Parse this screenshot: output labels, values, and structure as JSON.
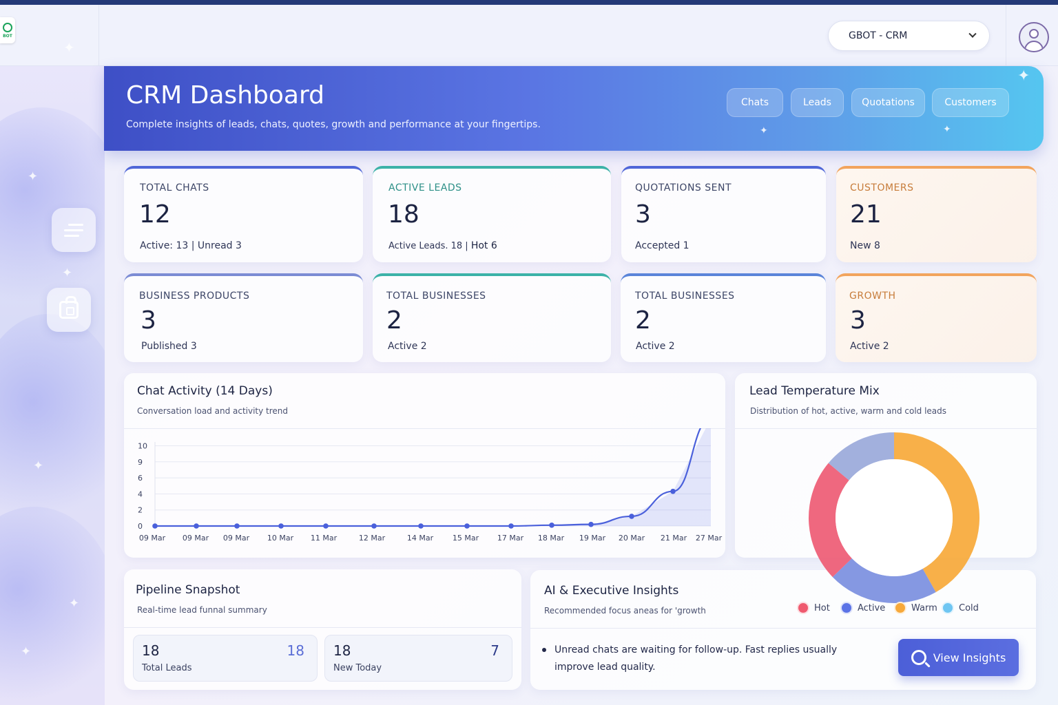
{
  "topbar": {
    "logo_text": "BOT",
    "workspace_select": "GBOT - CRM"
  },
  "header": {
    "title": "CRM Dashboard",
    "subtitle": "Complete insights of leads, chats, quotes, growth and performance at your fingertips.",
    "tabs": [
      {
        "label": "Chats"
      },
      {
        "label": "Leads"
      },
      {
        "label": "Quotations"
      },
      {
        "label": "Customers"
      }
    ]
  },
  "stats": [
    {
      "label": "TOTAL CHATS",
      "value": "12",
      "sub_plain": "Active: 13 | Unread 3",
      "sub_strong": ""
    },
    {
      "label": "ACTIVE LEADS",
      "value": "18",
      "sub_plain": "Active Leads. 18 |",
      "sub_strong": "Hot 6"
    },
    {
      "label": "QUOTATIONS SENT",
      "value": "3",
      "sub_plain": "Accepted 1",
      "sub_strong": ""
    },
    {
      "label": "CUSTOMERS",
      "value": "21",
      "sub_plain": "New",
      "sub_strong": "8"
    },
    {
      "label": "BUSINESS PRODUCTS",
      "value": "3",
      "sub_plain": "Published 3",
      "sub_strong": ""
    },
    {
      "label": "TOTAL BUSINESSES",
      "value": "2",
      "sub_plain": "Active 2",
      "sub_strong": ""
    },
    {
      "label": "TOTAL BUSINESSES",
      "value": "2",
      "sub_plain": "Active 2",
      "sub_strong": ""
    },
    {
      "label": "GROWTH",
      "value": "3",
      "sub_plain": "Active 2",
      "sub_strong": ""
    }
  ],
  "chat_activity": {
    "title": "Chat Activity (14 Days)",
    "subtitle": "Conversation load and activity trend"
  },
  "lead_mix": {
    "title": "Lead Temperature Mix",
    "subtitle": "Distribution of hot, active, warm and cold leads",
    "legend": [
      "Hot",
      "Active",
      "Warm",
      "Cold"
    ]
  },
  "pipeline": {
    "title": "Pipeline Snapshot",
    "subtitle": "Real-time lead funnal summary",
    "tiles": [
      {
        "value": "18",
        "right": "18",
        "label": "Total Leads"
      },
      {
        "value": "18",
        "right": "7",
        "label": "New Today"
      }
    ]
  },
  "insights": {
    "title": "AI & Executive Insights",
    "subtitle": "Recommended focus aneas for 'growth",
    "bullet": "Unread chats are waiting for follow-up. Fast replies usually improve lead quality.",
    "button": "View Insights"
  },
  "colors": {
    "accent": "#4c5fd8",
    "hot": "#ef5a6f",
    "active": "#5b73e6",
    "warm": "#f7a93a",
    "cold": "#6fc6f2"
  },
  "chart_data": [
    {
      "type": "line",
      "title": "Chat Activity (14 Days)",
      "x": [
        "09 Mar",
        "09 Mar",
        "09 Mar",
        "10 Mar",
        "11 Mar",
        "12 Mar",
        "14 Mar",
        "15 Mar",
        "17 Mar",
        "18 Mar",
        "19 Mar",
        "20 Mar",
        "21 Mar",
        "27 Mar"
      ],
      "y": [
        0,
        0,
        0,
        0,
        0,
        0,
        0,
        0,
        0,
        0.1,
        0.2,
        1.2,
        4.3,
        13.5
      ],
      "yticks": [
        0,
        2,
        4,
        6,
        9,
        10
      ],
      "ylim": [
        0,
        10
      ],
      "grid": true,
      "area_fill": true
    },
    {
      "type": "pie",
      "title": "Lead Temperature Mix",
      "donut": true,
      "labels": [
        "Warm",
        "Active",
        "Hot",
        "Cold"
      ],
      "values": [
        9,
        4.5,
        5,
        3
      ],
      "colors": [
        "#f7a93a",
        "#7b8fe0",
        "#ee5b74",
        "#9aa9da"
      ]
    }
  ]
}
